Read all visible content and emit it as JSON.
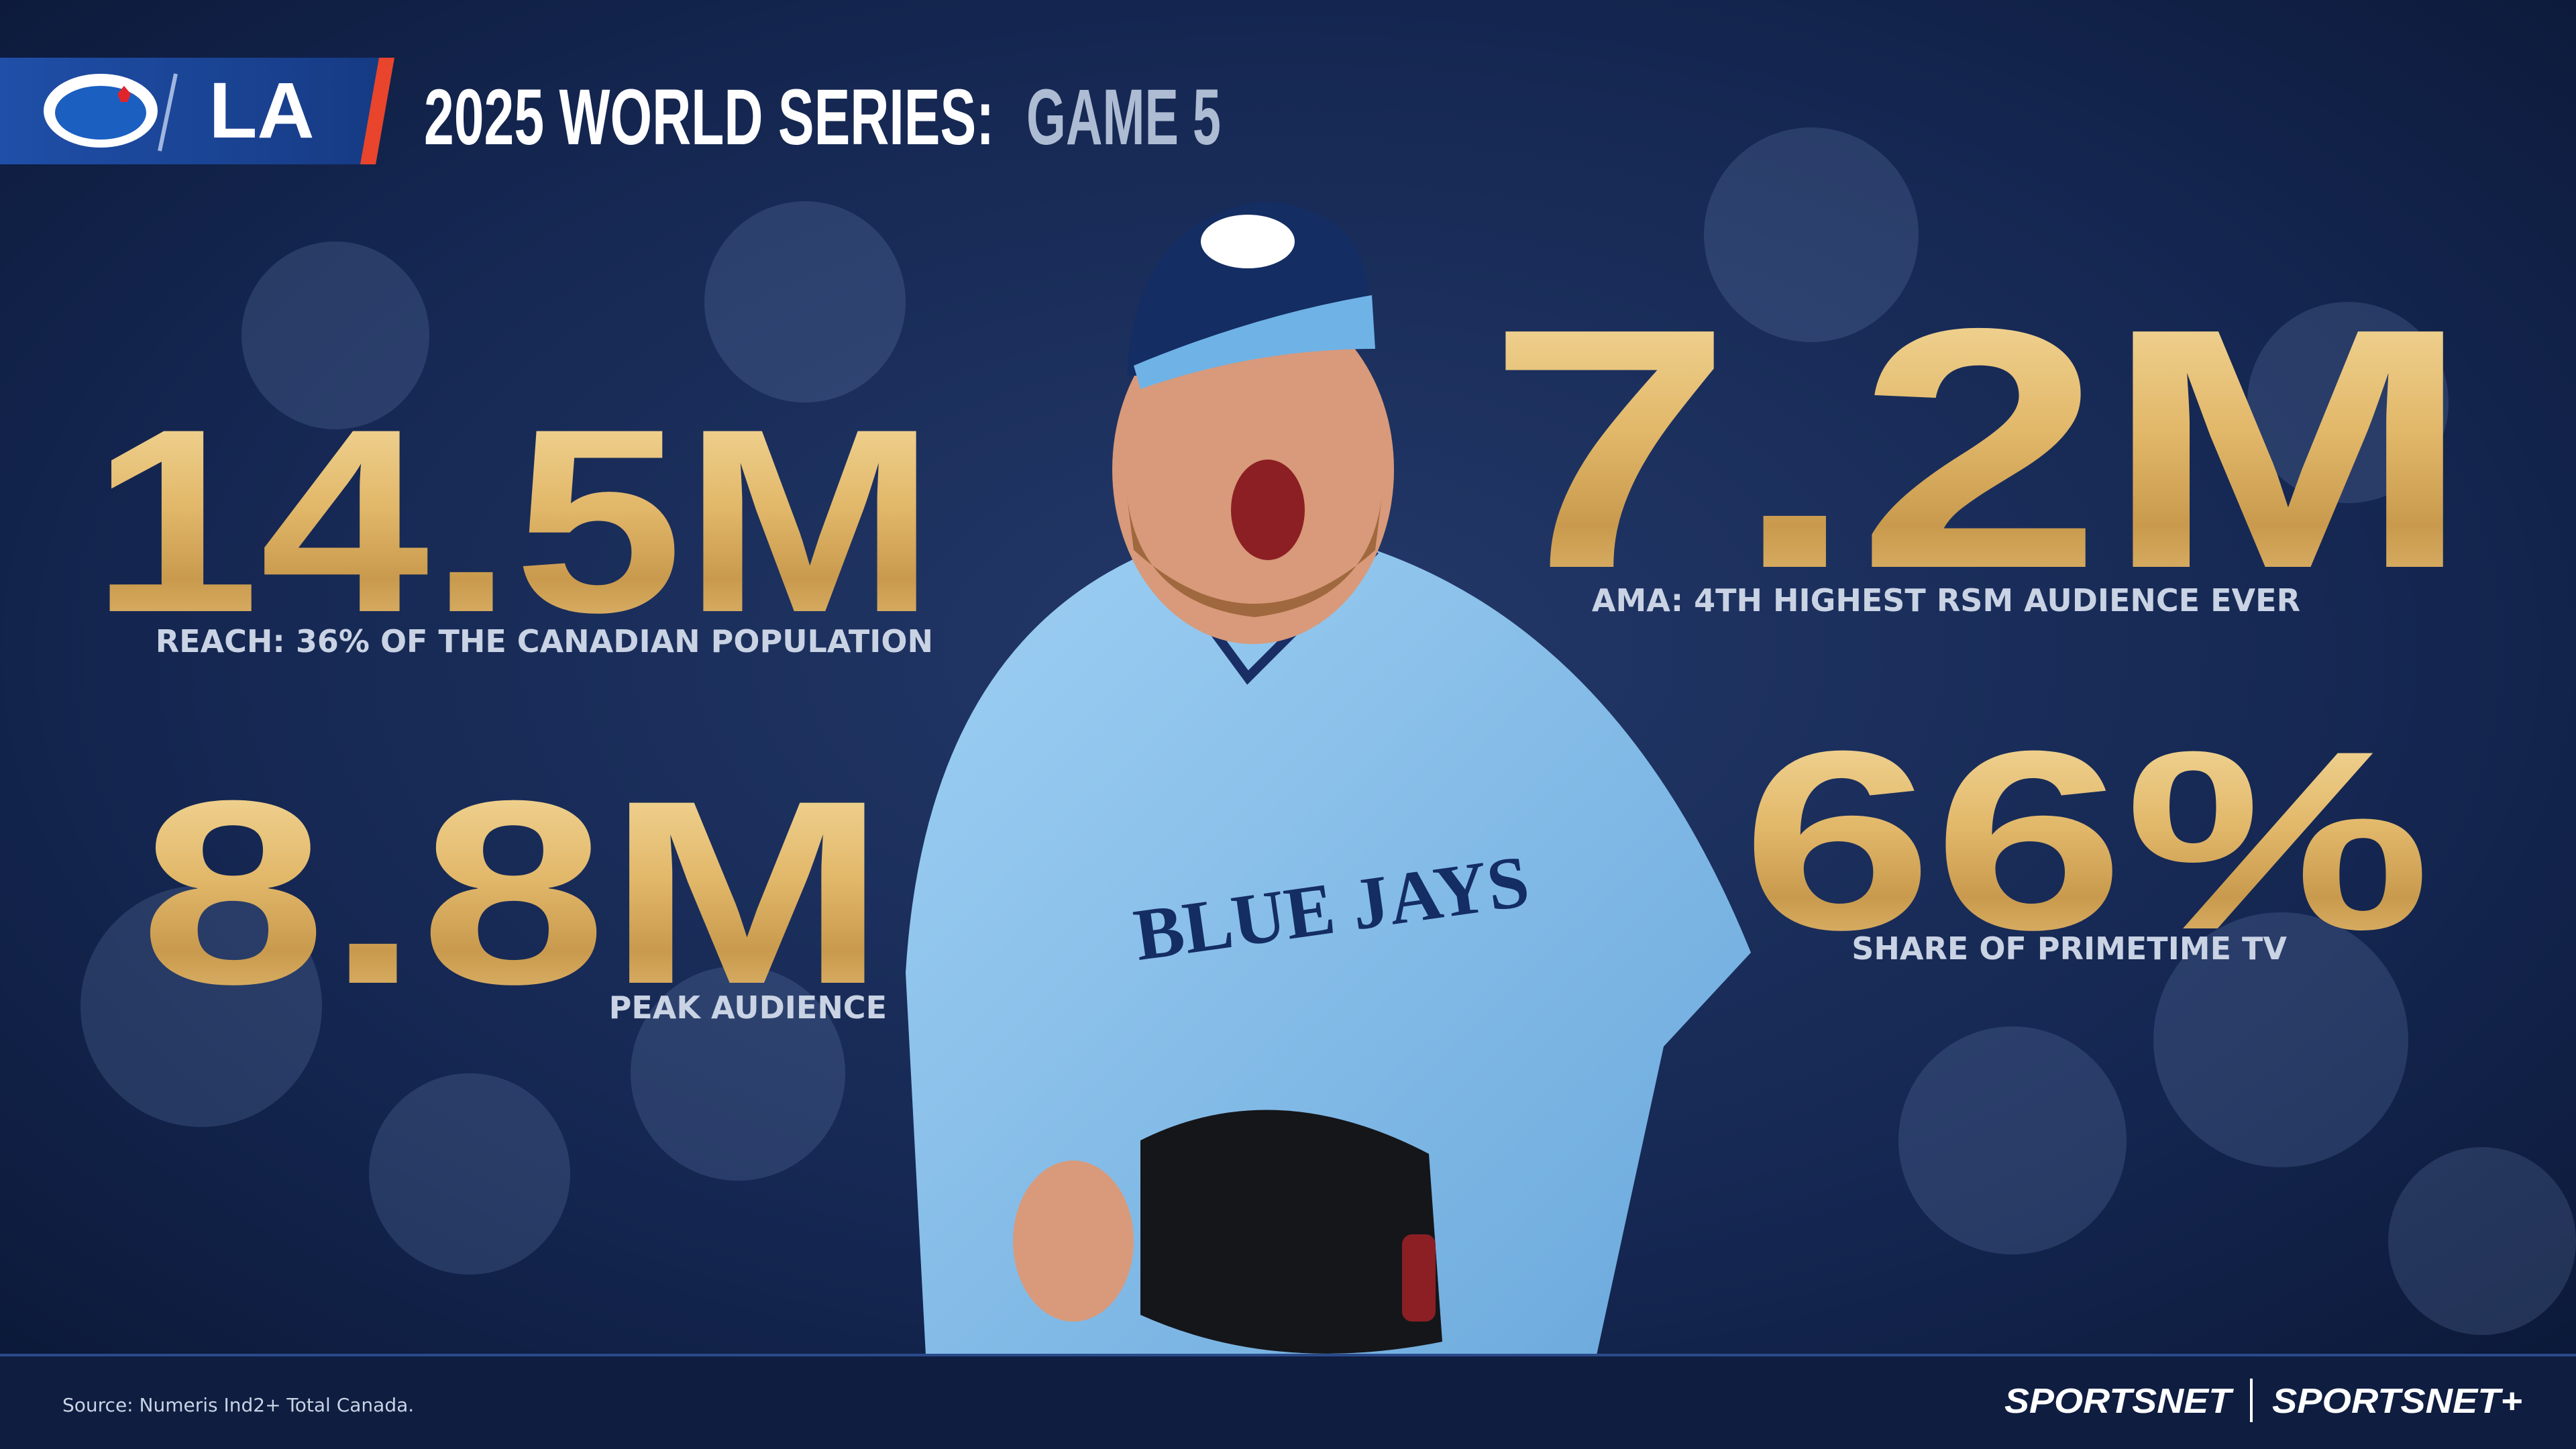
{
  "header": {
    "title": "2025 WORLD SERIES:",
    "subtitle": "GAME 5",
    "away_logo": "LA"
  },
  "photo": {
    "jersey_text": "BLUE JAYS"
  },
  "stats": [
    {
      "value": "14.5M",
      "label": "REACH: 36% OF THE CANADIAN POPULATION"
    },
    {
      "value": "7.2M",
      "label": "AMA: 4TH HIGHEST RSM AUDIENCE EVER"
    },
    {
      "value": "8.8M",
      "label": "PEAK AUDIENCE"
    },
    {
      "value": "66%",
      "label": "SHARE OF PRIMETIME TV"
    }
  ],
  "footer": {
    "source": "Source: Numeris Ind2+ Total Canada.",
    "brand": "SPORTSNET",
    "brand_plus": "SPORTSNET+"
  }
}
